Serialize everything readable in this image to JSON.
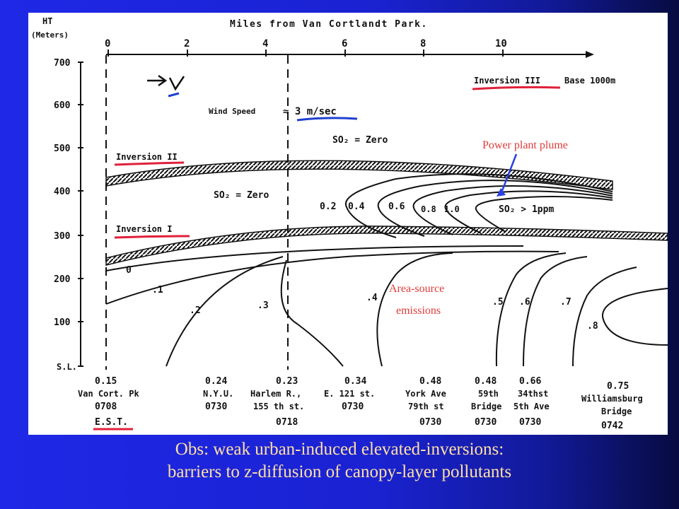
{
  "figure": {
    "top_axis_title": "Miles from Van Cortlandt Park.",
    "top_axis_ticks": [
      "0",
      "2",
      "4",
      "6",
      "8",
      "10"
    ],
    "y_axis_title_1": "HT",
    "y_axis_title_2": "(Meters)",
    "y_axis_ticks": [
      "700",
      "600",
      "500",
      "400",
      "300",
      "200",
      "100",
      "S.L."
    ],
    "wind_speed_label": "Wind Speed",
    "wind_speed_value": "≈ 3 m/sec",
    "so2_zero_upper": "SO₂ = Zero",
    "so2_zero_middle": "SO₂ = Zero",
    "so2_max_label": "SO₂ > 1ppm",
    "inversion_1_label": "Inversion I",
    "inversion_2_label": "Inversion II",
    "inversion_3_label": "Inversion III",
    "inversion_3_base": "Base 1000m",
    "plume_contour_labels": [
      "0.2",
      "0.4",
      "0.6",
      "0.8",
      "1.0"
    ],
    "surface_contour_labels": [
      "0",
      ".1",
      ".2",
      ".3",
      ".4",
      ".5",
      ".6",
      ".7",
      ".8"
    ],
    "power_plant_annotation": "Power plant plume",
    "area_source_annotation_1": "Area-source",
    "area_source_annotation_2": "emissions",
    "stations": [
      {
        "value": "0.15",
        "name1": "Van Cort. Pk",
        "name2": "0708",
        "name3": "E.S.T."
      },
      {
        "value": "0.24",
        "name1": "N.Y.U.",
        "name2": "0730",
        "name3": ""
      },
      {
        "value": "0.23",
        "name1": "Harlem R.,",
        "name2": "155 th st.",
        "name3": "0718"
      },
      {
        "value": "0.34",
        "name1": "E. 121 st.",
        "name2": "0730",
        "name3": ""
      },
      {
        "value": "0.48",
        "name1": "York Ave",
        "name2": "79th st",
        "name3": "0730"
      },
      {
        "value": "0.48",
        "name1": "59th",
        "name2": "Bridge",
        "name3": "0730"
      },
      {
        "value": "0.66",
        "name1": "34thst",
        "name2": "5th Ave",
        "name3": "0730"
      },
      {
        "value": "0.75",
        "name1": "Williamsburg",
        "name2": "Bridge",
        "name3": "0742"
      }
    ],
    "colors": {
      "marker_red": "#e0203a",
      "marker_blue": "#2040d0",
      "annotation": "#e03a3a"
    }
  },
  "caption": {
    "line1": "Obs: weak urban-induced elevated-inversions:",
    "line2": "barriers to z-diffusion of canopy-layer pollutants"
  }
}
